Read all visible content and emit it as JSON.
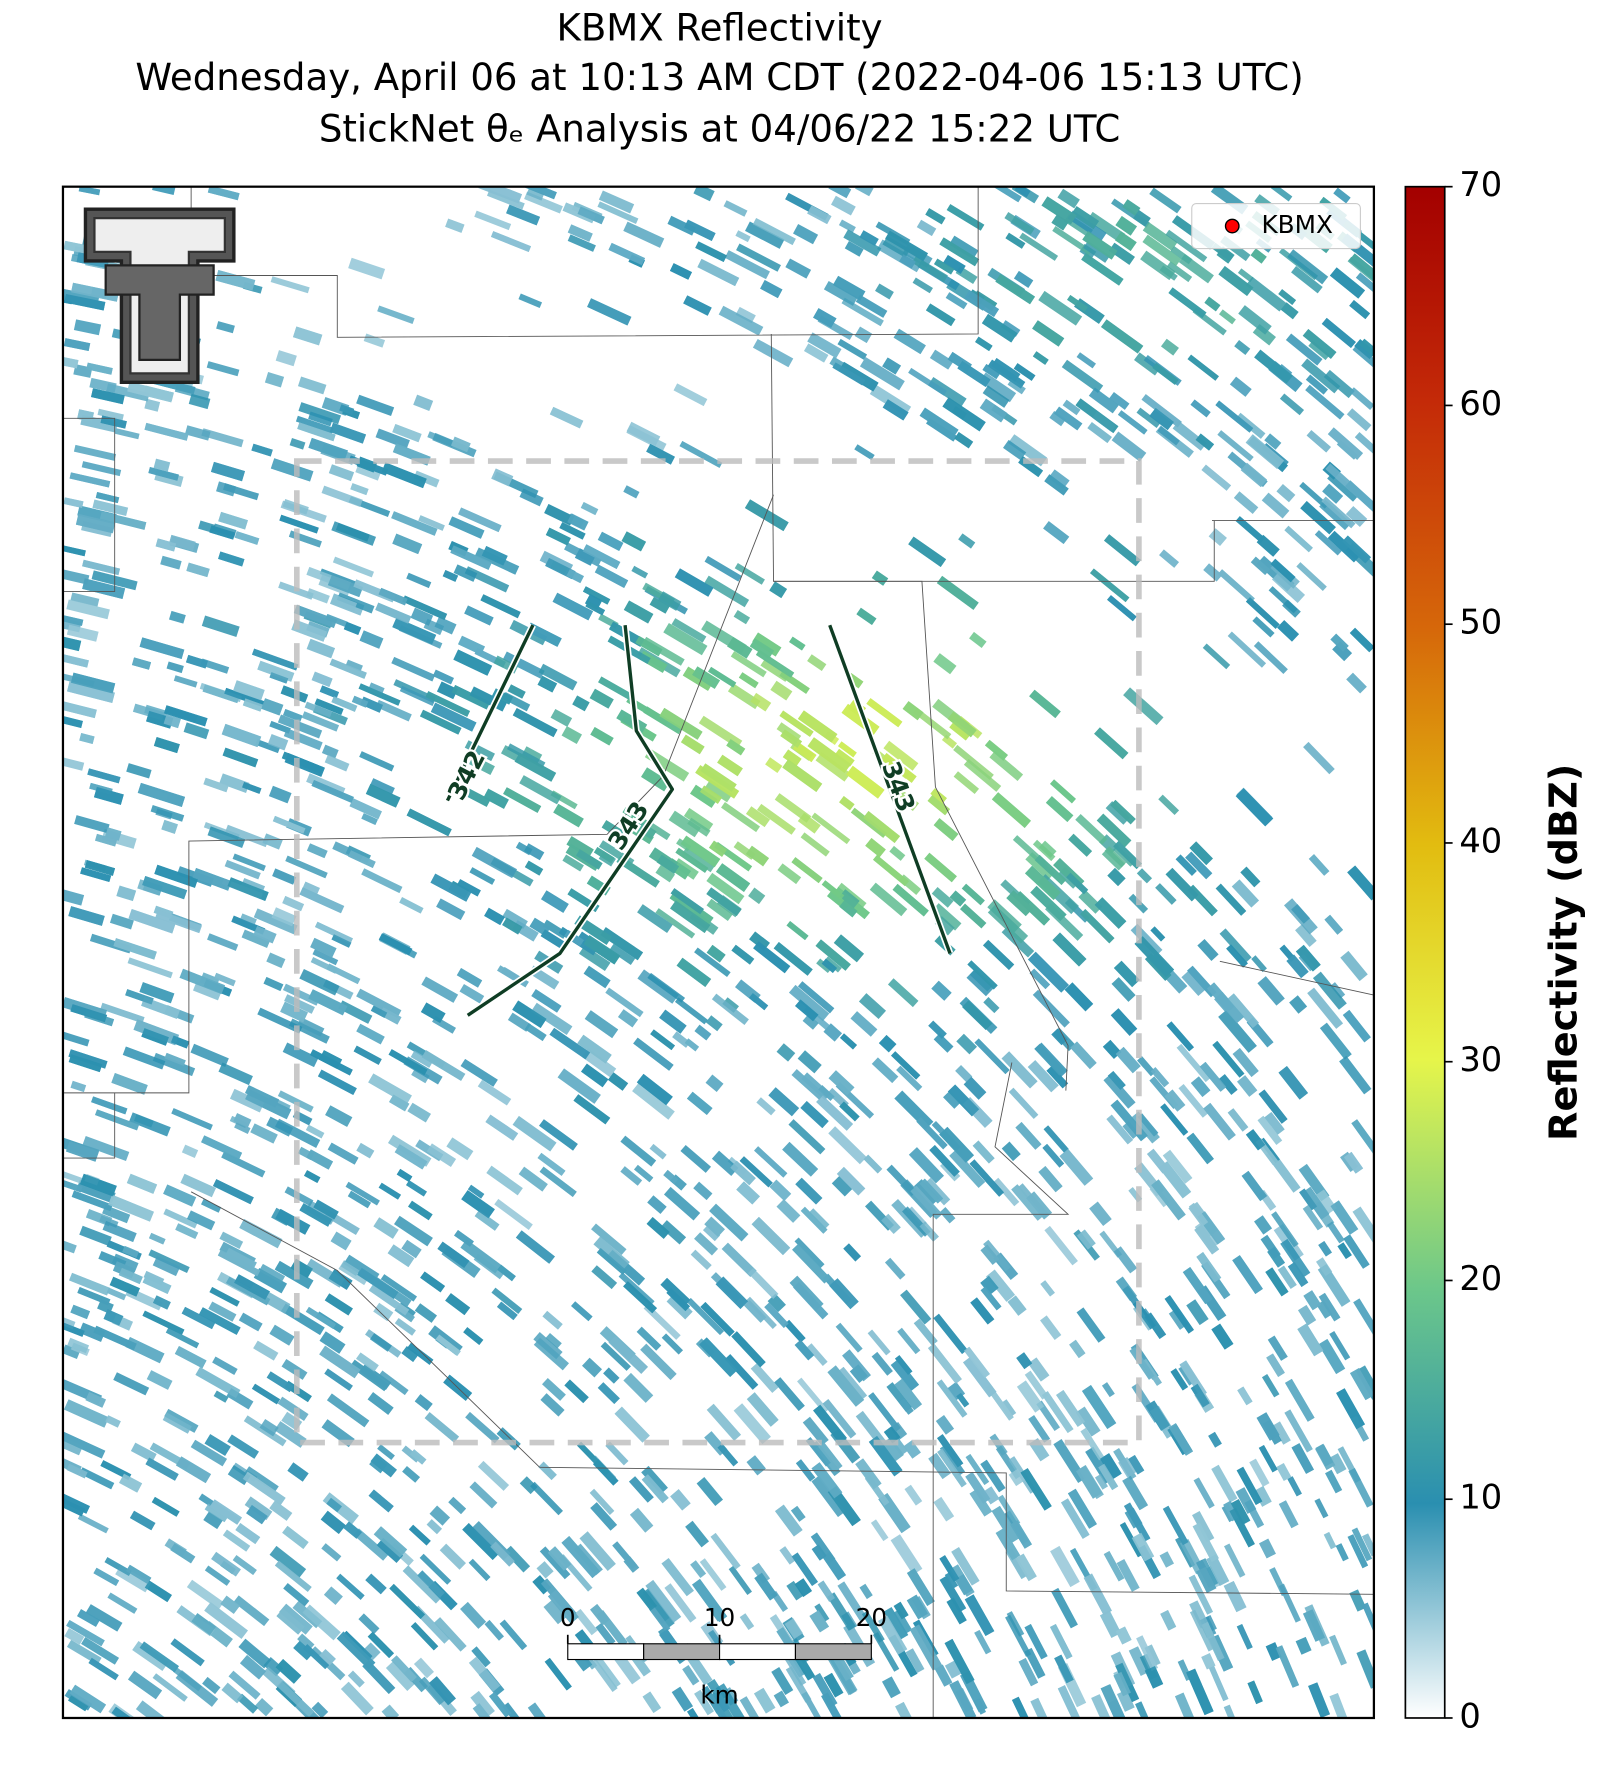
{
  "title": [
    "KBMX Reflectivity",
    "Wednesday, April 06 at 10:13 AM CDT (2022-04-06 15:13 UTC)",
    "StickNet θₑ Analysis at 04/06/22 15:22 UTC"
  ],
  "legend": {
    "label": "KBMX",
    "color": "#ff0000",
    "corner": "upper right"
  },
  "contour_labels": [
    "342",
    "343",
    "343"
  ],
  "colorbar": {
    "label": "Reflectivity (dBZ)",
    "lim": [
      0,
      70
    ],
    "ticks": [
      0,
      10,
      20,
      30,
      40,
      50,
      60,
      70
    ]
  },
  "scale_bar": {
    "lim": [
      0,
      20
    ],
    "ticks": [
      0,
      10,
      20
    ],
    "unit": "km"
  }
}
